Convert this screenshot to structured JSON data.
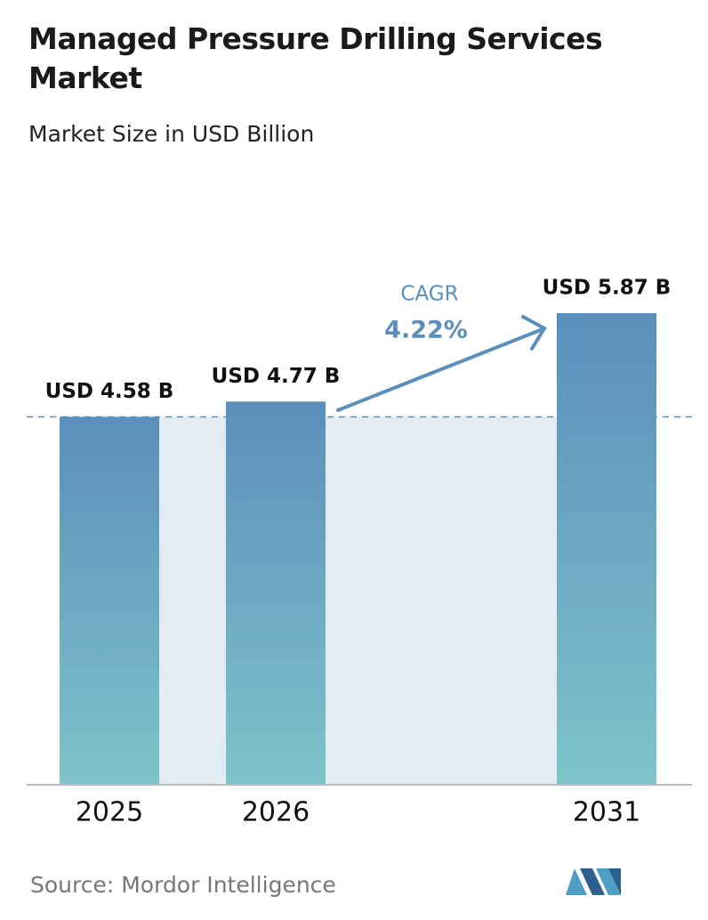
{
  "chart_data": {
    "type": "bar",
    "title": "Managed Pressure Drilling Services Market",
    "subtitle": "Market Size in USD Billion",
    "categories": [
      "2025",
      "2026",
      "2031"
    ],
    "values": [
      4.58,
      4.77,
      5.87
    ],
    "value_labels": [
      "USD 4.58 B",
      "USD 4.77 B",
      "USD 5.87 B"
    ],
    "color": [
      "#5a8fbb",
      "#7ec4c9"
    ],
    "cagr": {
      "label": "CAGR",
      "value": "4.22%"
    },
    "source": "Source:  Mordor Intelligence"
  }
}
